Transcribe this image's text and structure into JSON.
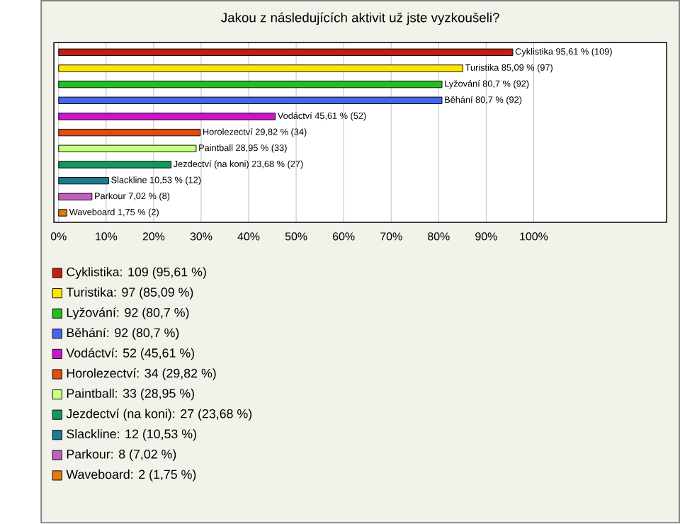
{
  "chart_data": {
    "type": "bar",
    "orientation": "horizontal",
    "title": "Jakou z následujících aktivit už jste vyzkoušeli?",
    "categories": [
      null,
      null,
      null,
      null,
      null,
      null,
      null,
      null,
      null,
      null,
      null
    ],
    "values": [
      95.61,
      85.09,
      80.7,
      80.7,
      45.61,
      29.82,
      28.95,
      23.68,
      10.53,
      7.02,
      1.75
    ],
    "value_labels": [
      "Cyklistika 95,61 % (109)",
      "Turistika 85,09 % (97)",
      "Lyžování 80,7 % (92)",
      "Běhání 80,7 % (92)",
      "Vodáctví 45,61 % (52)",
      "Horolezectví 29,82 % (34)",
      "Paintball 28,95 % (33)",
      "Jezdectví (na koni) 23,68 % (27)",
      "Slackline 10,53 % (12)",
      "Parkour 7,02 % (8)",
      "Waveboard 1,75 % (2)"
    ],
    "colors": [
      "#c0200f",
      "#ffe600",
      "#1fbf1f",
      "#4466ee",
      "#cc14cc",
      "#e34b0f",
      "#c8ff80",
      "#13985a",
      "#1d7a8f",
      "#c05fc0",
      "#e07b10"
    ],
    "xlim": [
      -1,
      128
    ],
    "xticks": [
      {
        "value": 0,
        "label": "0%"
      },
      {
        "value": 10,
        "label": "10%"
      },
      {
        "value": 20,
        "label": "20%"
      },
      {
        "value": 30,
        "label": "30%"
      },
      {
        "value": 40,
        "label": "40%"
      },
      {
        "value": 50,
        "label": "50%"
      },
      {
        "value": 60,
        "label": "60%"
      },
      {
        "value": 70,
        "label": "70%"
      },
      {
        "value": 80,
        "label": "80%"
      },
      {
        "value": 90,
        "label": "90%"
      },
      {
        "value": 100,
        "label": "100%"
      }
    ],
    "grid": "x",
    "tick_labels": "x",
    "annotations": [
      "Cyklistika: 109 (95,61 %)",
      "Turistika: 97 (85,09 %)",
      "Lyžování: 92 (80,7 %)",
      "Běhání: 92 (80,7 %)",
      "Vodáctví: 52 (45,61 %)",
      "Horolezectví: 34 (29,82 %)",
      "Paintball: 33 (28,95 %)",
      "Jezdectví (na koni): 27 (23,68 %)",
      "Slackline: 12 (10,53 %)",
      "Parkour: 8 (7,02 %)",
      "Waveboard: 2 (1,75 %)"
    ]
  }
}
